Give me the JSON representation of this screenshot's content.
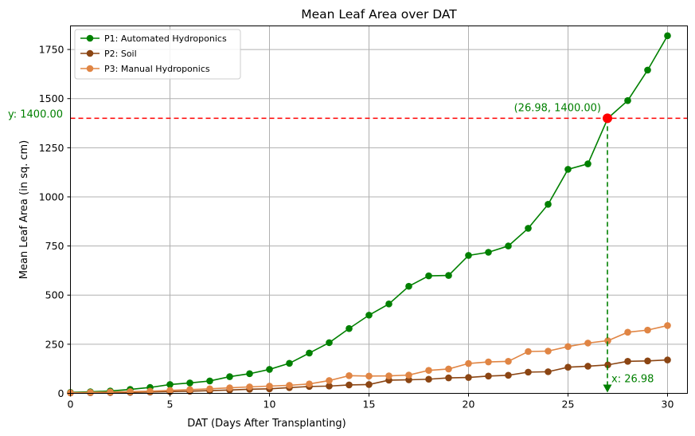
{
  "chart_data": {
    "type": "line",
    "title": "Mean Leaf Area over DAT",
    "xlabel": "DAT (Days After Transplanting)",
    "ylabel": "Mean Leaf Area (in sq. cm)",
    "xlim": [
      0,
      31
    ],
    "ylim": [
      0,
      1870
    ],
    "x_ticks": [
      0,
      5,
      10,
      15,
      20,
      25,
      30
    ],
    "y_ticks": [
      0,
      250,
      500,
      750,
      1000,
      1250,
      1500,
      1750
    ],
    "grid": true,
    "legend_position": "top-left",
    "x": [
      0,
      1,
      2,
      3,
      4,
      5,
      6,
      7,
      8,
      9,
      10,
      11,
      12,
      13,
      14,
      15,
      16,
      17,
      18,
      19,
      20,
      21,
      22,
      23,
      24,
      25,
      26,
      27,
      28,
      29,
      30
    ],
    "series": [
      {
        "name": "P1: Automated Hydroponics",
        "color": "#008000",
        "values": [
          5,
          8,
          12,
          20,
          30,
          45,
          53,
          63,
          85,
          100,
          122,
          153,
          205,
          258,
          330,
          398,
          455,
          545,
          598,
          600,
          702,
          718,
          750,
          840,
          962,
          1140,
          1168,
          1400,
          1490,
          1645,
          1820
        ]
      },
      {
        "name": "P2: Soil",
        "color": "#8B4513",
        "values": [
          2,
          3,
          4,
          5,
          7,
          9,
          11,
          14,
          17,
          21,
          23,
          29,
          35,
          37,
          43,
          45,
          67,
          69,
          72,
          79,
          81,
          88,
          92,
          108,
          110,
          133,
          138,
          145,
          163,
          165,
          170
        ]
      },
      {
        "name": "P3: Manual Hydroponics",
        "color": "#E08544",
        "values": [
          3,
          5,
          7,
          9,
          11,
          15,
          19,
          23,
          28,
          33,
          37,
          41,
          48,
          65,
          90,
          88,
          89,
          93,
          117,
          124,
          152,
          160,
          163,
          213,
          215,
          238,
          256,
          268,
          311,
          322,
          345
        ]
      }
    ],
    "annotations": {
      "point_label": "(26.98, 1400.00)",
      "y_label": "y: 1400.00",
      "x_label": "x: 26.98",
      "point_x": 26.98,
      "point_y": 1400,
      "hline_color": "#ff0000",
      "vline_color": "#008000",
      "point_color": "#ff0000"
    }
  }
}
